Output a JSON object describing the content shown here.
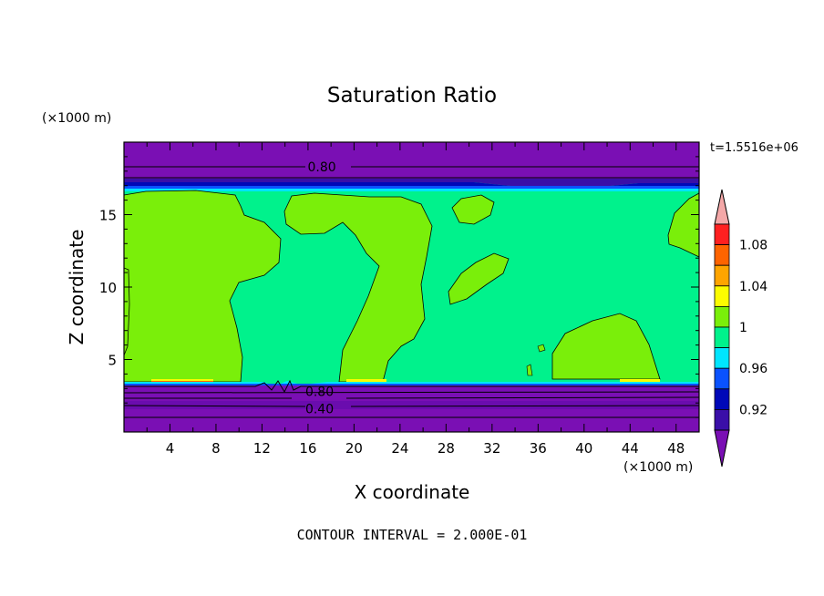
{
  "chart_data": {
    "type": "heatmap",
    "title": "Saturation Ratio",
    "xlabel": "X coordinate",
    "ylabel": "Z coordinate",
    "x_units": "(×1000 m)",
    "y_units": "(×1000 m)",
    "time_label": "t=1.5516e+06",
    "footer": "CONTOUR INTERVAL = 2.000E-01",
    "xlim": [
      0,
      50
    ],
    "ylim": [
      0,
      20
    ],
    "x_ticks": [
      4,
      8,
      12,
      16,
      20,
      24,
      28,
      32,
      36,
      40,
      44,
      48
    ],
    "x_tick_labels": [
      "4",
      "8",
      "12",
      "16",
      "20",
      "24",
      "28",
      "32",
      "36",
      "40",
      "44",
      "48"
    ],
    "y_ticks": [
      5,
      10,
      15
    ],
    "y_tick_labels": [
      "5",
      "10",
      "15"
    ],
    "contour_labels": [
      {
        "text": "0.80",
        "x": 17.2,
        "z": 18.3
      },
      {
        "text": "0.80",
        "x": 17.0,
        "z": 2.8
      },
      {
        "text": "0.40",
        "x": 17.0,
        "z": 1.6
      }
    ],
    "colorbar": {
      "levels": [
        0.92,
        0.94,
        0.96,
        0.98,
        1.0,
        1.02,
        1.04,
        1.06,
        1.08,
        1.1
      ],
      "labeled_levels": [
        "0.92",
        "0.96",
        "1",
        "1.04",
        "1.08"
      ],
      "colors": [
        "#7a0fb4",
        "#3a0fa8",
        "#0008b8",
        "#0a52ff",
        "#00e5ff",
        "#00f28c",
        "#7aef0a",
        "#fcfc00",
        "#ffa500",
        "#ff6400",
        "#ff2020",
        "#f4a8a8"
      ],
      "extend": "both"
    },
    "regions": {
      "stratosphere_band": {
        "z_range": [
          17,
          20
        ],
        "value_range": "0.60-0.92"
      },
      "upper_transition": {
        "z_range": [
          16.4,
          17.2
        ],
        "value_range": "0.92-0.98"
      },
      "mid_layer": {
        "z_range": [
          3.4,
          16.7
        ],
        "dominant_value": "0.98-1.00"
      },
      "supersaturated_patches": {
        "value_range": "1.00-1.02"
      },
      "lower_band": {
        "z_range": [
          0,
          3.4
        ],
        "value_range": "0.20-0.92"
      }
    }
  }
}
